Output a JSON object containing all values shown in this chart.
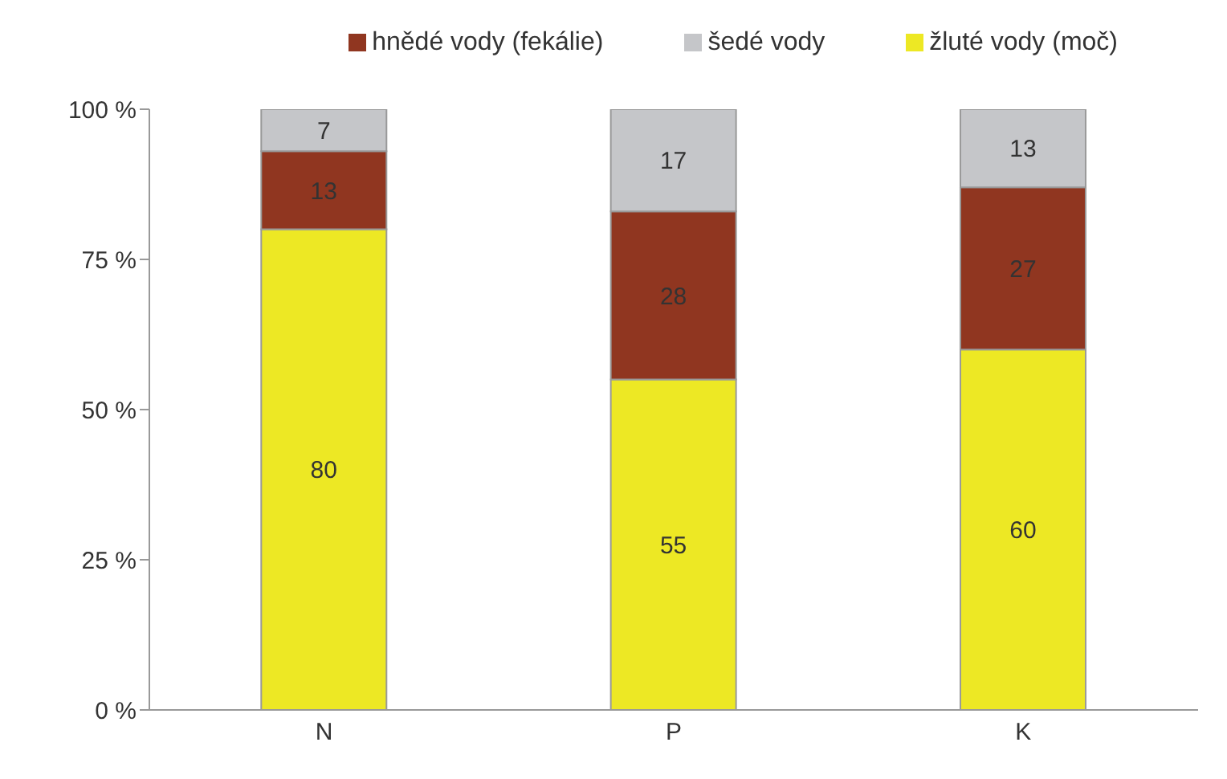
{
  "chart_data": {
    "type": "bar",
    "stacked": true,
    "categories": [
      "N",
      "P",
      "K"
    ],
    "series": [
      {
        "name": "žluté vody (moč)",
        "color": "#ede824",
        "values": [
          80,
          55,
          60
        ]
      },
      {
        "name": "hnědé vody (fekálie)",
        "color": "#903620",
        "values": [
          13,
          28,
          27
        ]
      },
      {
        "name": "šedé vody",
        "color": "#c5c6c9",
        "values": [
          7,
          17,
          13
        ]
      }
    ],
    "ylim": [
      0,
      100
    ],
    "yticks": [
      {
        "value": 0,
        "label": "0 %"
      },
      {
        "value": 25,
        "label": "25 %"
      },
      {
        "value": 50,
        "label": "50 %"
      },
      {
        "value": 75,
        "label": "75 %"
      },
      {
        "value": 100,
        "label": "100 %"
      }
    ],
    "data_labels": true,
    "legend": "top",
    "grid": false
  }
}
